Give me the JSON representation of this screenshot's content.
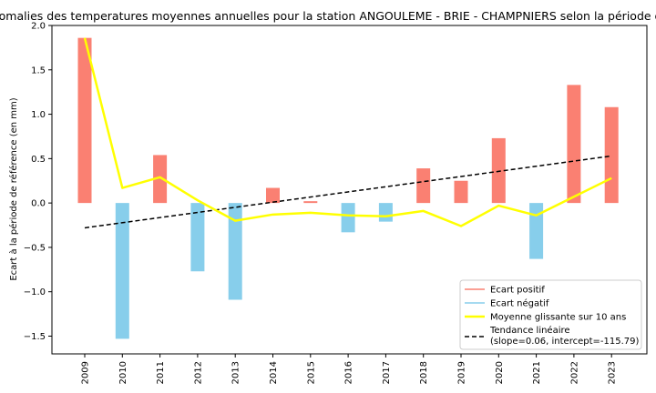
{
  "chart_data": {
    "type": "bar",
    "title": "Anomalies des temperatures moyennes annuelles pour la station ANGOULEME - BRIE - CHAMPNIERS selon la période de référence",
    "xlabel": "",
    "ylabel": "Ecart à la période de référence (en mm)",
    "ylim": [
      -1.7,
      2.0
    ],
    "yticks": [
      "−1.5",
      "−1.0",
      "−0.5",
      "0.0",
      "0.5",
      "1.0",
      "1.5",
      "2.0"
    ],
    "ytick_values": [
      -1.5,
      -1.0,
      -0.5,
      0.0,
      0.5,
      1.0,
      1.5,
      2.0
    ],
    "categories": [
      "2009",
      "2010",
      "2011",
      "2012",
      "2013",
      "2014",
      "2015",
      "2016",
      "2017",
      "2018",
      "2019",
      "2020",
      "2021",
      "2022",
      "2023"
    ],
    "x": [
      2009,
      2010,
      2011,
      2012,
      2013,
      2014,
      2015,
      2016,
      2017,
      2018,
      2019,
      2020,
      2021,
      2022,
      2023
    ],
    "values": [
      1.86,
      -1.53,
      0.54,
      -0.77,
      -1.09,
      0.17,
      0.02,
      -0.33,
      -0.21,
      0.39,
      0.25,
      0.73,
      -0.63,
      1.33,
      1.08
    ],
    "moving_average": [
      1.86,
      0.17,
      0.29,
      0.03,
      -0.2,
      -0.13,
      -0.11,
      -0.14,
      -0.15,
      -0.09,
      -0.26,
      -0.03,
      -0.14,
      0.07,
      0.28
    ],
    "trend": {
      "slope": 0.06,
      "intercept": -115.79,
      "x_start": 2009,
      "x_end": 2023,
      "y_start": -0.28,
      "y_end": 0.53
    },
    "colors": {
      "positive": "#fa8072",
      "negative": "#87ceeb",
      "moving_average": "#ffff00",
      "trend": "#000000"
    },
    "legend": {
      "placement": "lower-right",
      "items": [
        {
          "label": "Ecart positif",
          "color": "#fa8072",
          "style": "solid"
        },
        {
          "label": "Ecart négatif",
          "color": "#87ceeb",
          "style": "solid"
        },
        {
          "label": "Moyenne glissante sur 10 ans",
          "color": "#ffff00",
          "style": "solid"
        },
        {
          "label_lines": [
            "Tendance linéaire",
            "(slope=0.06, intercept=-115.79)"
          ],
          "color": "#000000",
          "style": "dashed"
        }
      ]
    },
    "grid": false
  }
}
